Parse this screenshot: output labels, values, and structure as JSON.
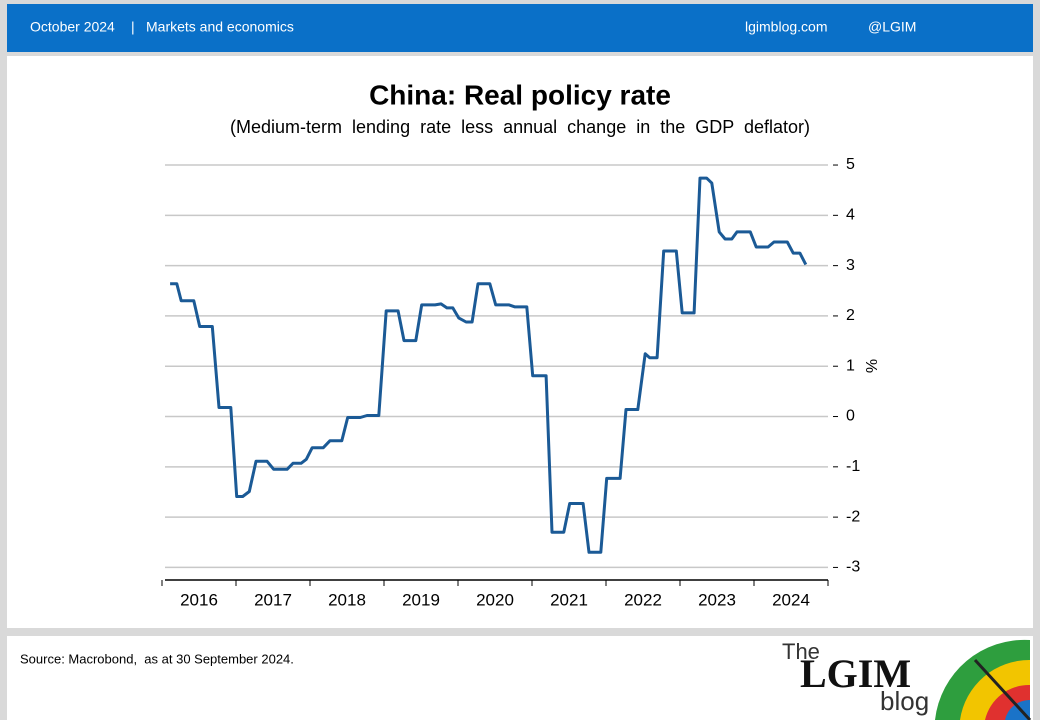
{
  "header": {
    "date": "October 2024",
    "separator": "|",
    "section": "Markets and economics",
    "site": "lgimblog.com",
    "handle": "@LGIM"
  },
  "chart_data": {
    "type": "line",
    "title": "China: Real policy rate",
    "subtitle": "(Medium-term  lending  rate  less  annual  change  in  the  GDP  deflator)",
    "y_label": "%",
    "xlim": [
      2016.0,
      2025.0
    ],
    "ylim": [
      -3.25,
      5.1
    ],
    "xticks": [
      {
        "value": 2016.5,
        "label": "2016"
      },
      {
        "value": 2017.5,
        "label": "2017"
      },
      {
        "value": 2018.5,
        "label": "2018"
      },
      {
        "value": 2019.5,
        "label": "2019"
      },
      {
        "value": 2020.5,
        "label": "2020"
      },
      {
        "value": 2021.5,
        "label": "2021"
      },
      {
        "value": 2022.5,
        "label": "2022"
      },
      {
        "value": 2023.5,
        "label": "2023"
      },
      {
        "value": 2024.5,
        "label": "2024"
      }
    ],
    "yticks": [
      -3,
      -2,
      -1,
      0,
      1,
      2,
      3,
      4,
      5
    ],
    "grid": true,
    "series": [
      {
        "name": "Real policy rate",
        "color": "#1b5a96",
        "x": [
          2016.11,
          2016.2,
          2016.26,
          2016.43,
          2016.51,
          2016.68,
          2016.77,
          2016.93,
          2017.01,
          2017.09,
          2017.18,
          2017.27,
          2017.42,
          2017.51,
          2017.69,
          2017.77,
          2017.88,
          2017.95,
          2018.03,
          2018.18,
          2018.27,
          2018.43,
          2018.51,
          2018.68,
          2018.77,
          2018.93,
          2019.03,
          2019.19,
          2019.27,
          2019.43,
          2019.51,
          2019.69,
          2019.77,
          2019.85,
          2019.93,
          2020.01,
          2020.11,
          2020.19,
          2020.27,
          2020.43,
          2020.51,
          2020.69,
          2020.77,
          2020.93,
          2021.01,
          2021.19,
          2021.27,
          2021.43,
          2021.51,
          2021.69,
          2021.77,
          2021.93,
          2022.01,
          2022.19,
          2022.27,
          2022.43,
          2022.53,
          2022.59,
          2022.69,
          2022.78,
          2022.95,
          2023.03,
          2023.19,
          2023.27,
          2023.36,
          2023.43,
          2023.53,
          2023.61,
          2023.7,
          2023.77,
          2023.95,
          2024.03,
          2024.19,
          2024.27,
          2024.45,
          2024.53,
          2024.62,
          2024.7
        ],
        "values": [
          2.64,
          2.64,
          2.3,
          2.3,
          1.79,
          1.79,
          0.18,
          0.18,
          -1.59,
          -1.59,
          -1.49,
          -0.89,
          -0.89,
          -1.05,
          -1.05,
          -0.93,
          -0.93,
          -0.85,
          -0.62,
          -0.62,
          -0.48,
          -0.48,
          -0.02,
          -0.02,
          0.02,
          0.02,
          2.1,
          2.1,
          1.51,
          1.51,
          2.22,
          2.22,
          2.24,
          2.16,
          2.16,
          1.96,
          1.88,
          1.88,
          2.64,
          2.64,
          2.22,
          2.22,
          2.18,
          2.18,
          0.81,
          0.81,
          -2.3,
          -2.3,
          -1.73,
          -1.73,
          -2.7,
          -2.7,
          -1.23,
          -1.23,
          0.14,
          0.14,
          1.25,
          1.17,
          1.17,
          3.29,
          3.29,
          2.06,
          2.06,
          4.74,
          4.74,
          4.64,
          3.67,
          3.53,
          3.53,
          3.67,
          3.67,
          3.37,
          3.37,
          3.47,
          3.47,
          3.25,
          3.25,
          3.02
        ]
      }
    ]
  },
  "footer": {
    "source": "Source: Macrobond,  as at 30 September 2024.",
    "logo_top": "The",
    "logo_main": "LGIM",
    "logo_bottom": "blog"
  }
}
